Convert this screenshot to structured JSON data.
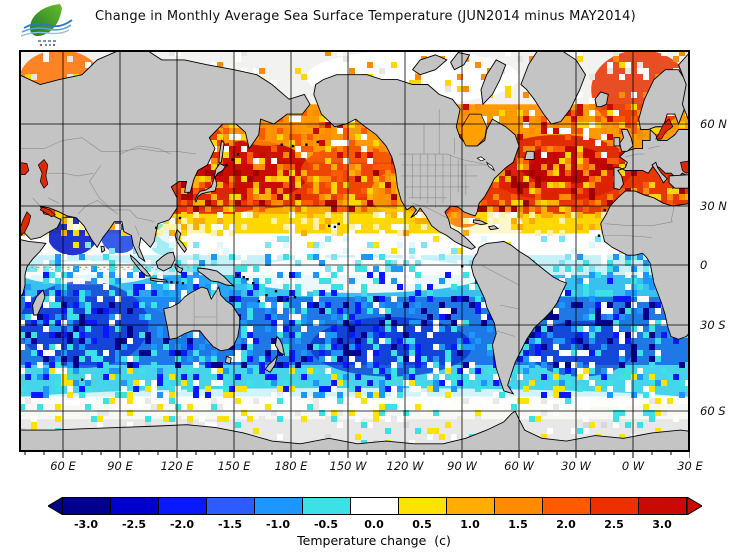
{
  "header": {
    "title": "Change in Monthly Average Sea Surface Temperature (JUN2014 minus MAY2014)"
  },
  "logo": {
    "name": "leaf-wave-logo"
  },
  "axes": {
    "lat_labels": [
      {
        "text": "60 N",
        "lat": 60
      },
      {
        "text": "30 N",
        "lat": 30
      },
      {
        "text": "0",
        "lat": 0
      },
      {
        "text": "30 S",
        "lat": -30
      },
      {
        "text": "60 S",
        "lat": -60
      }
    ],
    "lon_labels": [
      {
        "text": "60 E",
        "lon": 60
      },
      {
        "text": "90 E",
        "lon": 90
      },
      {
        "text": "120 E",
        "lon": 120
      },
      {
        "text": "150 E",
        "lon": 150
      },
      {
        "text": "180 E",
        "lon": 180
      },
      {
        "text": "150 W",
        "lon": 210
      },
      {
        "text": "120 W",
        "lon": 240
      },
      {
        "text": "90 W",
        "lon": 270
      },
      {
        "text": "60 W",
        "lon": 300
      },
      {
        "text": "30 W",
        "lon": 330
      },
      {
        "text": "0 W",
        "lon": 360
      },
      {
        "text": "30 E",
        "lon": 390
      }
    ]
  },
  "colorbar": {
    "caption": "Temperature change  (c)",
    "values": [
      "-3.0",
      "-2.5",
      "-2.0",
      "-1.5",
      "-1.0",
      "-0.5",
      "0.0",
      "0.5",
      "1.0",
      "1.5",
      "2.0",
      "2.5",
      "3.0"
    ],
    "colors": [
      "#00008C",
      "#0000CD",
      "#0818FF",
      "#2B5CFF",
      "#1E96FF",
      "#3CE1E6",
      "#FFFFFF",
      "#FFE300",
      "#FFAD00",
      "#FF8C00",
      "#FF5A00",
      "#EE3000",
      "#C80A00"
    ],
    "arrow_left": "#00008C",
    "arrow_right": "#C80A00"
  },
  "chart_data": {
    "type": "heatmap",
    "title": "Change in Monthly Average Sea Surface Temperature (JUN2014 minus MAY2014)",
    "variable": "sea surface temperature monthly change",
    "period": "JUN2014 minus MAY2014",
    "units": "C",
    "scale": {
      "min": -3.0,
      "max": 3.0,
      "step": 0.5
    },
    "colorbar_values": [
      -3.0,
      -2.5,
      -2.0,
      -1.5,
      -1.0,
      -0.5,
      0.0,
      0.5,
      1.0,
      1.5,
      2.0,
      2.5,
      3.0
    ],
    "lat_gridlines_deg": [
      60,
      30,
      0,
      -30,
      -60
    ],
    "lon_gridlines_deg": [
      60,
      90,
      120,
      150,
      180,
      210,
      240,
      270,
      300,
      330,
      360,
      390
    ],
    "map_window": "approx 37E eastward to 30E, 75N to 75S, Mercator-like spacing",
    "pattern_summary": "Northern-hemisphere oceans warmed (+0.5 to +3 C; strongest reds in NW Pacific near Japan, North Atlantic and European seas). Near-equatorial band ~0 (white). Southern-hemisphere oceans cooled (-0.5 to -3 C; darkest blues 10S-45S in Indian, South Pacific and South Atlantic). Light gray near Antarctica = ice/no data.",
    "inland_seas_note": "Mediterranean, Black Sea, Caspian, Red Sea, Persian Gulf and Baltic shown red (warming); Hudson Bay orange.",
    "bands": [
      {
        "lat_from": 75,
        "lat_to": 64,
        "color": "#F2F2F0",
        "value_c": 0.0
      },
      {
        "lat_from": 64,
        "lat_to": 46,
        "color": "#FF9A00",
        "value_c": 1.5
      },
      {
        "lat_from": 46,
        "lat_to": 26,
        "color": "#E83800",
        "value_c": 2.5
      },
      {
        "lat_from": 26,
        "lat_to": 16,
        "color": "#FFD700",
        "value_c": 0.7
      },
      {
        "lat_from": 16,
        "lat_to": 5,
        "color": "#FFFFFF",
        "value_c": 0.0
      },
      {
        "lat_from": 5,
        "lat_to": -5,
        "color": "#C8F0F8",
        "value_c": -0.3
      },
      {
        "lat_from": -5,
        "lat_to": -16,
        "color": "#38C0F0",
        "value_c": -0.8
      },
      {
        "lat_from": -16,
        "lat_to": -44,
        "color": "#1E78E6",
        "value_c": -1.5
      },
      {
        "lat_from": -44,
        "lat_to": -55,
        "color": "#45D4EC",
        "value_c": -0.7
      },
      {
        "lat_from": -55,
        "lat_to": -63,
        "color": "#F8F8F4",
        "value_c": 0.0
      },
      {
        "lat_from": -63,
        "lat_to": -75,
        "color": "#E8E8E8",
        "value_c": null
      }
    ],
    "patches": [
      {
        "name": "nw-pacific-strong-warming",
        "lon": [
          128,
          190
        ],
        "lat": [
          32,
          54
        ],
        "color": "#C80A00",
        "a": 0.95
      },
      {
        "name": "japan-east-china-warming",
        "lon": [
          120,
          150
        ],
        "lat": [
          28,
          40
        ],
        "color": "#E02800",
        "a": 0.9
      },
      {
        "name": "central-n-pacific-warming",
        "lon": [
          185,
          240
        ],
        "lat": [
          33,
          52
        ],
        "color": "#F04800",
        "a": 0.8
      },
      {
        "name": "ne-pacific-moderate",
        "lon": [
          235,
          252
        ],
        "lat": [
          22,
          45
        ],
        "color": "#FFB000",
        "a": 0.75
      },
      {
        "name": "california-mixed",
        "lon": [
          222,
          244
        ],
        "lat": [
          26,
          42
        ],
        "color": "#FFC800",
        "a": 0.65
      },
      {
        "name": "n-pacific-yellow-fringe",
        "lon": [
          150,
          250
        ],
        "lat": [
          20,
          30
        ],
        "color": "#FFDC00",
        "a": 0.7
      },
      {
        "name": "n-atlantic-warming",
        "lon": [
          282,
          360
        ],
        "lat": [
          32,
          56
        ],
        "color": "#DC2000",
        "a": 0.9
      },
      {
        "name": "n-atlantic-core",
        "lon": [
          300,
          348
        ],
        "lat": [
          38,
          52
        ],
        "color": "#B80000",
        "a": 0.8
      },
      {
        "name": "norwegian-sea-warming",
        "lon": [
          338,
          390
        ],
        "lat": [
          58,
          75
        ],
        "color": "#E83000",
        "a": 0.85
      },
      {
        "name": "barents-warming",
        "lon": [
          37,
          80
        ],
        "lat": [
          63,
          75
        ],
        "color": "#FF7000",
        "a": 0.85
      },
      {
        "name": "kara-moderate",
        "lon": [
          80,
          110
        ],
        "lat": [
          65,
          75
        ],
        "color": "#FFD700",
        "a": 0.6
      },
      {
        "name": "okhotsk-warming",
        "lon": [
          125,
          145
        ],
        "lat": [
          45,
          60
        ],
        "color": "#E83000",
        "a": 0.85
      },
      {
        "name": "bering-warming",
        "lon": [
          150,
          185
        ],
        "lat": [
          52,
          62
        ],
        "color": "#FF9000",
        "a": 0.8
      },
      {
        "name": "arctic-na-no-change",
        "lon": [
          188,
          300
        ],
        "lat": [
          64,
          75
        ],
        "color": "#FFFFFF",
        "a": 0.95
      },
      {
        "name": "caribbean-no-change",
        "lon": [
          262,
          302
        ],
        "lat": [
          10,
          30
        ],
        "color": "#FFFFFF",
        "a": 0.8
      },
      {
        "name": "gulf-of-mexico-warming",
        "lon": [
          262,
          280
        ],
        "lat": [
          19,
          30
        ],
        "color": "#FF7800",
        "a": 0.85
      },
      {
        "name": "equatorial-pacific-zero",
        "lon": [
          150,
          282
        ],
        "lat": [
          -14,
          4
        ],
        "color": "#FFFFFF",
        "a": 0.9
      },
      {
        "name": "equatorial-indian-zero",
        "lon": [
          37,
          108
        ],
        "lat": [
          -10,
          2
        ],
        "color": "#FFFFFF",
        "a": 0.85
      },
      {
        "name": "south-china-sea-mild",
        "lon": [
          105,
          120
        ],
        "lat": [
          5,
          22
        ],
        "color": "#7FE4F2",
        "a": 0.7
      },
      {
        "name": "west-pacific-no-change",
        "lon": [
          110,
          135
        ],
        "lat": [
          10,
          22
        ],
        "color": "#FFFFFF",
        "a": 0.7
      },
      {
        "name": "arabian-sea-cooling",
        "lon": [
          52,
          78
        ],
        "lat": [
          5,
          25
        ],
        "color": "#0A1EC8",
        "a": 0.9
      },
      {
        "name": "bay-of-bengal-cooling",
        "lon": [
          80,
          100
        ],
        "lat": [
          6,
          23
        ],
        "color": "#1440E6",
        "a": 0.85
      },
      {
        "name": "s-indian-strong-cooling",
        "lon": [
          37,
          105
        ],
        "lat": [
          -45,
          -8
        ],
        "color": "#0F2ED2",
        "a": 0.7
      },
      {
        "name": "n-australia-cooling",
        "lon": [
          100,
          150
        ],
        "lat": [
          -25,
          -5
        ],
        "color": "#1E96FF",
        "a": 0.6
      },
      {
        "name": "s-pacific-strong-cooling",
        "lon": [
          190,
          275
        ],
        "lat": [
          -48,
          -26
        ],
        "color": "#0C2CD2",
        "a": 0.7
      },
      {
        "name": "s-atlantic-strong-cooling",
        "lon": [
          305,
          360
        ],
        "lat": [
          -48,
          -28
        ],
        "color": "#0F2ED2",
        "a": 0.65
      },
      {
        "name": "subantarctic-ring-zero",
        "lon": [
          37,
          390
        ],
        "lat": [
          -60,
          -52
        ],
        "color": "#FFFFFF",
        "a": 0.75
      }
    ]
  }
}
